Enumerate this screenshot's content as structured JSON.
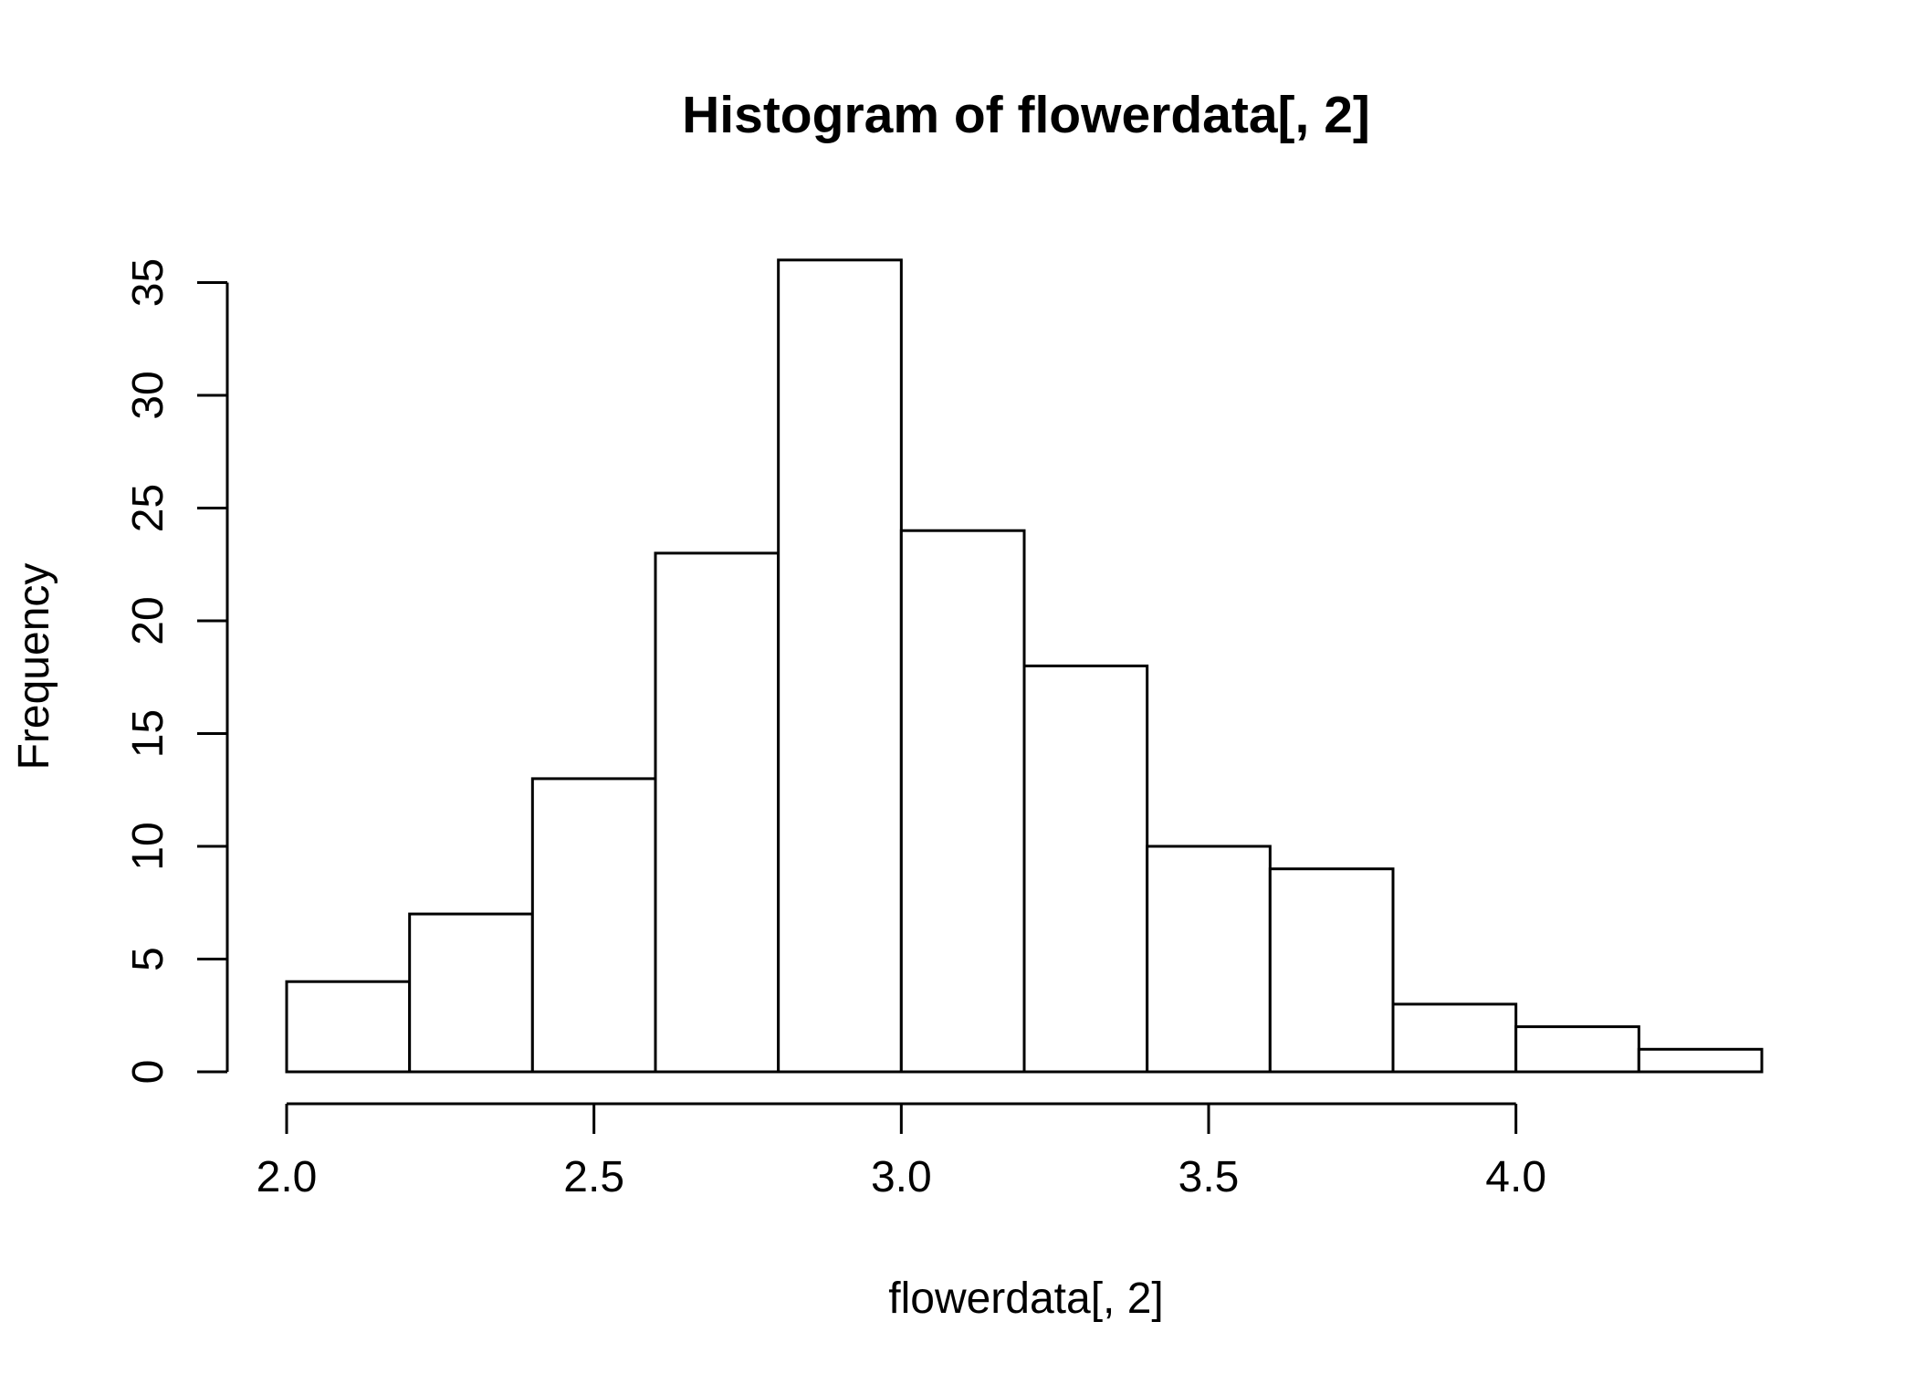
{
  "chart_data": {
    "type": "bar",
    "subtype": "histogram",
    "title": "Histogram of flowerdata[, 2]",
    "xlabel": "flowerdata[, 2]",
    "ylabel": "Frequency",
    "bins": [
      {
        "start": 2.0,
        "end": 2.2,
        "count": 4
      },
      {
        "start": 2.2,
        "end": 2.4,
        "count": 7
      },
      {
        "start": 2.4,
        "end": 2.6,
        "count": 13
      },
      {
        "start": 2.6,
        "end": 2.8,
        "count": 23
      },
      {
        "start": 2.8,
        "end": 3.0,
        "count": 36
      },
      {
        "start": 3.0,
        "end": 3.2,
        "count": 24
      },
      {
        "start": 3.2,
        "end": 3.4,
        "count": 18
      },
      {
        "start": 3.4,
        "end": 3.6,
        "count": 10
      },
      {
        "start": 3.6,
        "end": 3.8,
        "count": 9
      },
      {
        "start": 3.8,
        "end": 4.0,
        "count": 3
      },
      {
        "start": 4.0,
        "end": 4.2,
        "count": 2
      },
      {
        "start": 4.2,
        "end": 4.4,
        "count": 1
      }
    ],
    "xlim": [
      2.0,
      4.4
    ],
    "ylim": [
      0,
      36
    ],
    "x_axis_range": [
      2.0,
      4.0
    ],
    "y_axis_range": [
      0,
      35
    ],
    "x_ticks": [
      {
        "value": 2.0,
        "label": "2.0"
      },
      {
        "value": 2.5,
        "label": "2.5"
      },
      {
        "value": 3.0,
        "label": "3.0"
      },
      {
        "value": 3.5,
        "label": "3.5"
      },
      {
        "value": 4.0,
        "label": "4.0"
      }
    ],
    "y_ticks": [
      {
        "value": 0,
        "label": "0"
      },
      {
        "value": 5,
        "label": "5"
      },
      {
        "value": 10,
        "label": "10"
      },
      {
        "value": 15,
        "label": "15"
      },
      {
        "value": 20,
        "label": "20"
      },
      {
        "value": 25,
        "label": "25"
      },
      {
        "value": 30,
        "label": "30"
      },
      {
        "value": 35,
        "label": "35"
      }
    ],
    "grid": false,
    "legend": "none",
    "colors": {
      "bar_fill": "#ffffff",
      "bar_stroke": "#000000",
      "axis": "#000000",
      "background": "#ffffff"
    }
  }
}
